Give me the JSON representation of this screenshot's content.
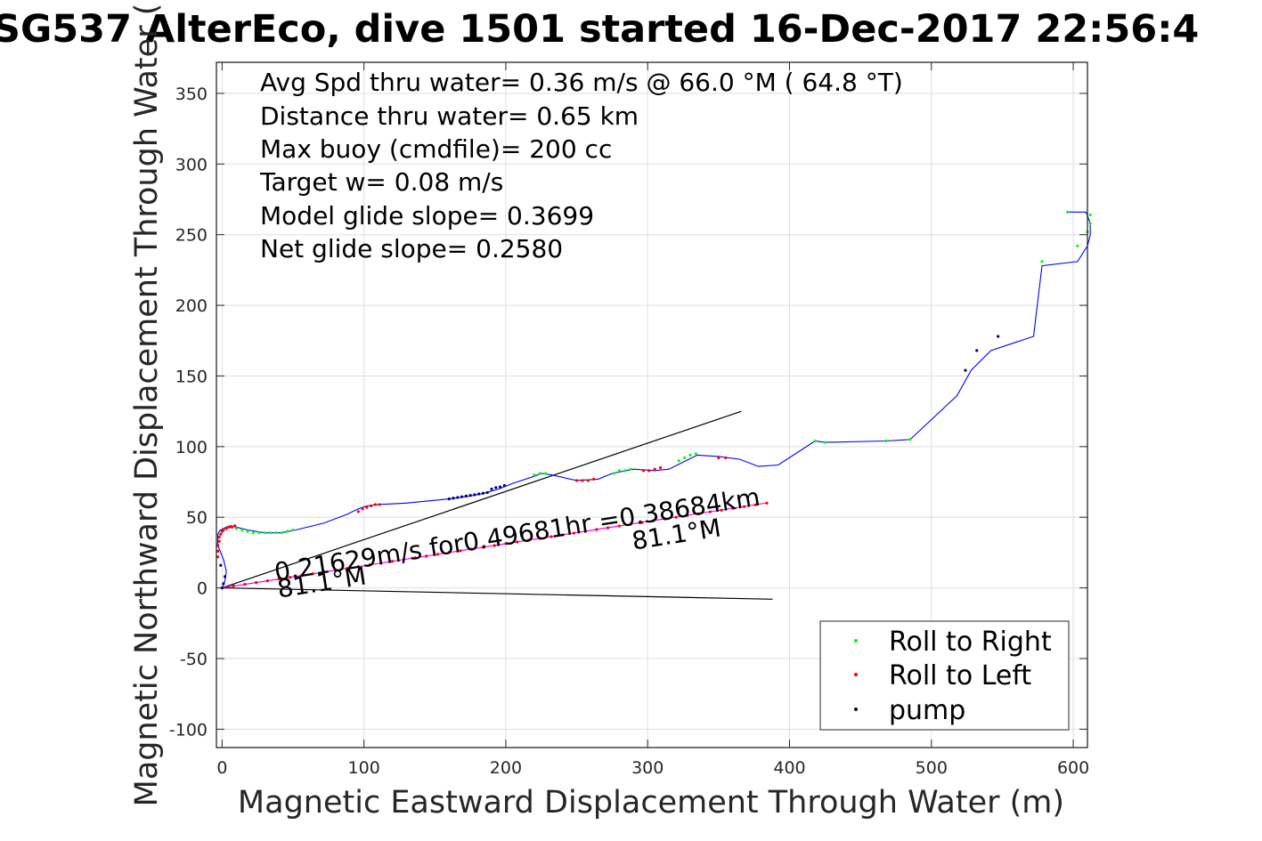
{
  "chart_data": {
    "type": "line",
    "title": "SG537 AlterEco, dive 1501 started 16-Dec-2017 22:56:4",
    "xlabel": "Magnetic Eastward Displacement Through Water (m)",
    "ylabel": "Magnetic Northward Displacement Through Water (",
    "xlim": [
      -4,
      610
    ],
    "ylim": [
      -113,
      372
    ],
    "xticks": [
      0,
      100,
      200,
      300,
      400,
      500,
      600
    ],
    "yticks": [
      -100,
      -50,
      0,
      50,
      100,
      150,
      200,
      250,
      300,
      350
    ],
    "grid": true,
    "stats": [
      "Avg Spd thru water=  0.36 m/s @  66.0 °M ( 64.8 °T)",
      "Distance thru water=  0.65 km",
      "Max buoy (cmdfile)= 200 cc",
      "Target w= 0.08 m/s",
      "Model glide slope= 0.3699",
      "Net glide slope= 0.2580"
    ],
    "track": {
      "color": "#0000ff",
      "x": [
        0,
        2,
        3,
        1,
        -1,
        -3,
        -3,
        -3,
        -2,
        -1,
        1,
        3,
        6,
        10,
        18,
        30,
        42,
        52,
        72,
        88,
        96,
        102,
        110,
        130,
        160,
        175,
        185,
        195,
        205,
        220,
        225,
        232,
        250,
        265,
        275,
        290,
        305,
        315,
        325,
        335,
        350,
        365,
        378,
        392,
        418,
        425,
        468,
        485,
        518,
        528,
        542,
        572,
        578,
        603,
        610,
        612,
        612,
        609,
        596
      ],
      "y": [
        0,
        5,
        12,
        20,
        25,
        30,
        35,
        38,
        40,
        41,
        42,
        43,
        44,
        43,
        41,
        39,
        39,
        41,
        46,
        52,
        56,
        58,
        59,
        60,
        63,
        65,
        67,
        70,
        74,
        79,
        81,
        80,
        76,
        77,
        81,
        84,
        83,
        84,
        89,
        94,
        93,
        91,
        86,
        87,
        104,
        103,
        104,
        105,
        136,
        154,
        168,
        178,
        228,
        231,
        242,
        250,
        258,
        266,
        266
      ]
    },
    "points": {
      "roll_right": {
        "color": "#00ff00",
        "x": [
          10,
          14,
          18,
          22,
          26,
          30,
          34,
          38,
          42,
          46,
          50,
          220,
          224,
          228,
          276,
          280,
          284,
          288,
          322,
          326,
          330,
          334,
          418,
          425,
          468,
          485,
          578,
          603,
          596,
          610,
          612,
          612
        ],
        "y": [
          42,
          41,
          40,
          39,
          39,
          39,
          39,
          39,
          39,
          40,
          41,
          80,
          81,
          81,
          81,
          83,
          83,
          84,
          90,
          92,
          94,
          95,
          104,
          103,
          104,
          105,
          231,
          242,
          266,
          252,
          258,
          264
        ]
      },
      "roll_left": {
        "color": "#ff0000",
        "x": [
          -3,
          -3,
          -3,
          -2,
          -2,
          -1,
          0,
          1,
          3,
          5,
          7,
          9,
          96,
          99,
          102,
          105,
          108,
          111,
          250,
          254,
          258,
          262,
          297,
          301,
          305,
          309,
          350,
          355,
          0,
          8,
          16,
          24,
          32,
          40,
          48,
          56,
          64,
          72,
          80,
          88,
          96,
          104,
          112,
          120,
          128,
          136,
          144,
          152,
          160,
          168,
          176,
          184,
          192,
          200,
          208,
          216,
          224,
          232,
          240,
          248,
          256,
          264,
          272,
          280,
          288,
          296,
          304,
          312,
          320,
          328,
          336,
          344,
          352,
          360,
          368,
          376,
          384
        ],
        "y": [
          22,
          26,
          30,
          33,
          36,
          38,
          40,
          41,
          42,
          43,
          43,
          44,
          54,
          56,
          57,
          58,
          59,
          59,
          76,
          76,
          76,
          77,
          83,
          83,
          84,
          85,
          92,
          92,
          0,
          1.3,
          2.5,
          3.8,
          5.0,
          6.3,
          7.5,
          8.8,
          10.0,
          11.3,
          12.5,
          13.8,
          15.0,
          16.3,
          17.5,
          18.8,
          20.0,
          21.3,
          22.5,
          23.8,
          25.0,
          26.3,
          27.5,
          28.8,
          30.0,
          31.3,
          32.5,
          33.8,
          35.0,
          36.3,
          37.5,
          38.8,
          40.0,
          41.3,
          42.5,
          43.8,
          45.0,
          46.3,
          47.5,
          48.8,
          50.0,
          51.3,
          52.5,
          53.8,
          55.0,
          56.3,
          57.5,
          58.8,
          60.0
        ]
      },
      "pump": {
        "color": "#000080",
        "x": [
          0,
          1,
          2,
          -1,
          160,
          163,
          166,
          169,
          172,
          175,
          178,
          181,
          184,
          187,
          190,
          193,
          196,
          199,
          524,
          532,
          547
        ],
        "y": [
          0,
          3,
          8,
          16,
          63,
          63.5,
          64,
          64.5,
          65,
          65.5,
          66,
          66.5,
          67,
          67.5,
          70,
          71,
          71.5,
          72.5,
          154,
          168,
          178
        ]
      }
    },
    "lines": [
      {
        "name": "model-glide-upper",
        "color": "#000000",
        "x": [
          0,
          366
        ],
        "y": [
          0,
          125
        ]
      },
      {
        "name": "model-glide-lower",
        "color": "#000000",
        "x": [
          0,
          388
        ],
        "y": [
          0,
          -8
        ]
      },
      {
        "name": "current-vector",
        "color": "#ff00ff",
        "x": [
          0,
          383
        ],
        "y": [
          0,
          60
        ]
      }
    ],
    "annotations": [
      {
        "text": "0.21629m/s for0.49681hr =0.38684km",
        "x": 38,
        "y": 5,
        "angle": 8.9
      },
      {
        "text": "81.1°M",
        "x": 40,
        "y": -7,
        "angle": 8.9
      },
      {
        "text": "81.1°M",
        "x": 290,
        "y": 27,
        "angle": 8.9
      }
    ],
    "legend": {
      "position": "bottom-right",
      "entries": [
        {
          "label": "Roll to Right",
          "color": "#00ff00"
        },
        {
          "label": "Roll to Left",
          "color": "#ff0000"
        },
        {
          "label": "pump",
          "color": "#000000"
        }
      ]
    }
  }
}
